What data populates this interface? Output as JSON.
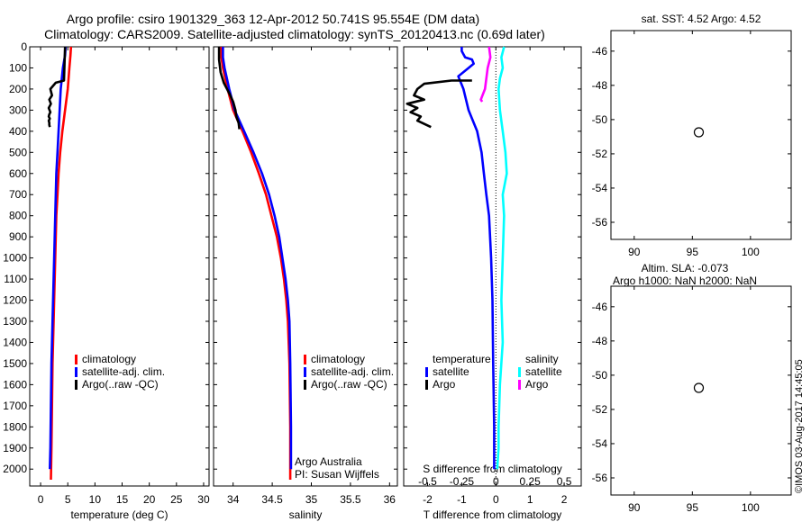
{
  "header": {
    "title_line1": "Argo profile: csiro 1901329_363 12-Apr-2012 50.741S 95.554E (DM data)",
    "title_line2": "Climatology: CARS2009. Satellite-adjusted climatology: synTS_20120413.nc (0.69d later)"
  },
  "colors": {
    "climatology": "#ff0000",
    "satellite": "#0000ff",
    "argo": "#000000",
    "satellite_salinity_diff": "#00ffff",
    "argo_salinity_diff": "#ff00ff"
  },
  "chart_data": [
    {
      "id": "temperature",
      "type": "line",
      "xlabel": "temperature (deg C)",
      "ylabel": "",
      "xlim": [
        -2,
        31
      ],
      "ylim": [
        2080,
        0
      ],
      "xticks": [
        0,
        5,
        10,
        15,
        20,
        25,
        30
      ],
      "yticks": [
        0,
        100,
        200,
        300,
        400,
        500,
        600,
        700,
        800,
        900,
        1000,
        1100,
        1200,
        1300,
        1400,
        1500,
        1600,
        1700,
        1800,
        1900,
        2000
      ],
      "legend": [
        "climatology",
        "satellite-adj. clim.",
        "Argo(..raw -QC)"
      ],
      "legend_position": "lower-center",
      "series": [
        {
          "name": "climatology",
          "color": "#ff0000",
          "x": [
            5.6,
            5.5,
            5.3,
            5.0,
            4.5,
            4.0,
            3.6,
            3.3,
            3.1,
            2.9,
            2.8,
            2.7,
            2.6,
            2.5,
            2.4,
            2.3,
            2.2,
            2.1,
            2.0,
            1.9
          ],
          "y": [
            0,
            40,
            100,
            200,
            300,
            400,
            500,
            600,
            700,
            800,
            900,
            1000,
            1100,
            1200,
            1300,
            1400,
            1500,
            1700,
            1900,
            2050
          ]
        },
        {
          "name": "satellite-adj. clim.",
          "color": "#0000ff",
          "x": [
            4.6,
            4.5,
            4.1,
            3.7,
            3.5,
            3.3,
            3.1,
            2.9,
            2.8,
            2.7,
            2.6,
            2.5,
            2.4,
            2.3,
            2.2,
            2.1,
            2.0,
            1.9,
            1.8,
            1.7
          ],
          "y": [
            0,
            40,
            100,
            200,
            300,
            400,
            500,
            600,
            700,
            800,
            900,
            1000,
            1100,
            1200,
            1300,
            1400,
            1500,
            1700,
            1900,
            2000
          ]
        },
        {
          "name": "Argo(..raw -QC)",
          "color": "#000000",
          "x": [
            4.5,
            4.4,
            4.3,
            2.8,
            1.8,
            2.1,
            1.6,
            1.9,
            1.5,
            1.8,
            1.6,
            1.5,
            1.7,
            1.5,
            1.6,
            1.6,
            1.7
          ],
          "y": [
            0,
            80,
            160,
            170,
            200,
            230,
            250,
            270,
            290,
            310,
            320,
            330,
            340,
            350,
            360,
            370,
            380
          ]
        }
      ]
    },
    {
      "id": "salinity",
      "type": "line",
      "xlabel": "salinity",
      "ylabel": "",
      "xlim": [
        33.75,
        36.1
      ],
      "ylim": [
        2080,
        0
      ],
      "xticks": [
        34,
        34.5,
        35,
        35.5,
        36
      ],
      "xticklabels": [
        "34",
        "34.5",
        "35",
        "35.5",
        "36"
      ],
      "legend": [
        "climatology",
        "satellite-adj. clim.",
        "Argo(..raw -QC)"
      ],
      "legend_position": "lower-right",
      "annotation": [
        "Argo Australia",
        "PI: Susan Wijffels"
      ],
      "series": [
        {
          "name": "climatology",
          "color": "#ff0000",
          "x": [
            33.85,
            33.85,
            33.87,
            33.93,
            34.0,
            34.12,
            34.23,
            34.33,
            34.42,
            34.49,
            34.56,
            34.61,
            34.65,
            34.68,
            34.7,
            34.72,
            34.73,
            34.73
          ],
          "y": [
            0,
            50,
            100,
            200,
            300,
            400,
            500,
            600,
            700,
            800,
            900,
            1000,
            1100,
            1200,
            1300,
            1500,
            1800,
            2050
          ]
        },
        {
          "name": "satellite-adj. clim.",
          "color": "#0000ff",
          "x": [
            33.87,
            33.87,
            33.89,
            33.95,
            34.02,
            34.14,
            34.26,
            34.37,
            34.46,
            34.53,
            34.59,
            34.63,
            34.67,
            34.7,
            34.72,
            34.73,
            34.74,
            34.74
          ],
          "y": [
            0,
            50,
            100,
            200,
            300,
            400,
            500,
            600,
            700,
            800,
            900,
            1000,
            1100,
            1200,
            1300,
            1500,
            1800,
            2000
          ]
        },
        {
          "name": "Argo(..raw -QC)",
          "color": "#000000",
          "x": [
            33.82,
            33.82,
            33.84,
            33.88,
            33.95,
            34.0,
            34.03,
            34.04,
            34.07,
            34.08
          ],
          "y": [
            0,
            60,
            120,
            170,
            220,
            260,
            300,
            330,
            360,
            390
          ]
        }
      ]
    },
    {
      "id": "differences",
      "type": "line",
      "xlabel": "T difference from climatology",
      "ylabel": "",
      "title": "S difference from climatology",
      "xlim": [
        -2.7,
        2.5
      ],
      "ylim": [
        2080,
        0
      ],
      "xticks_bottom": [
        -2,
        -1,
        0,
        1,
        2
      ],
      "xticks_top": [
        -0.5,
        -0.25,
        0,
        0.25,
        0.5
      ],
      "xticklabels_top": [
        "-0.5",
        "-0.25",
        "0",
        "0.25",
        "0.5"
      ],
      "zero_line": "dotted",
      "legend_groups": [
        {
          "heading": "temperature",
          "items": [
            "satellite",
            "Argo"
          ]
        },
        {
          "heading": "salinity",
          "items": [
            "satellite",
            "Argo"
          ]
        }
      ],
      "series": [
        {
          "name": "satellite",
          "group": "temperature",
          "color": "#0000ff",
          "x": [
            -1.0,
            -1.0,
            -0.9,
            -0.7,
            -0.65,
            -0.8,
            -1.1,
            -0.95,
            -0.8,
            -0.55,
            -0.42,
            -0.35,
            -0.28,
            -0.2,
            -0.14,
            -0.1,
            -0.08,
            -0.05,
            -0.05
          ],
          "y": [
            0,
            20,
            50,
            60,
            80,
            100,
            140,
            200,
            300,
            400,
            500,
            600,
            700,
            800,
            1000,
            1200,
            1500,
            1800,
            2000
          ]
        },
        {
          "name": "Argo",
          "group": "temperature",
          "color": "#000000",
          "x": [
            -0.7,
            -1.3,
            -2.1,
            -2.3,
            -2.4,
            -2.1,
            -2.6,
            -2.3,
            -2.5,
            -2.2,
            -2.3,
            -1.9
          ],
          "y": [
            160,
            160,
            175,
            200,
            230,
            250,
            270,
            290,
            310,
            330,
            350,
            380
          ]
        },
        {
          "name": "satellite",
          "group": "salinity",
          "color": "#00ffff",
          "x": [
            0.06,
            0.04,
            0.05,
            0.03,
            0.02,
            0.03,
            0.05,
            0.07,
            0.08,
            0.05,
            0.06,
            0.05,
            0.04,
            0.05,
            0.03,
            0.02,
            0.02,
            0.01
          ],
          "y": [
            0,
            50,
            100,
            150,
            200,
            300,
            400,
            500,
            600,
            700,
            800,
            1000,
            1200,
            1400,
            1600,
            1800,
            1900,
            2000
          ]
        },
        {
          "name": "Argo",
          "group": "salinity",
          "color": "#ff00ff",
          "x": [
            -0.05,
            -0.04,
            -0.06,
            -0.07,
            -0.08,
            -0.11,
            -0.1
          ],
          "y": [
            0,
            50,
            100,
            150,
            200,
            250,
            260
          ]
        }
      ]
    },
    {
      "id": "sst-map",
      "type": "heatmap",
      "title": "sat. SST: 4.52 Argo: 4.52",
      "xlim": [
        88,
        103.5
      ],
      "ylim": [
        -57,
        -44.8
      ],
      "xticks": [
        90,
        95,
        100
      ],
      "yticks": [
        -46,
        -48,
        -50,
        -52,
        -54,
        -56
      ],
      "marker": {
        "lon": 95.554,
        "lat": -50.741
      }
    },
    {
      "id": "sla-map",
      "type": "heatmap",
      "title_line1": "Altim. SLA: -0.073",
      "title_line2": "Argo h1000: NaN h2000: NaN",
      "xlim": [
        88,
        103.5
      ],
      "ylim": [
        -57,
        -44.8
      ],
      "xticks": [
        90,
        95,
        100
      ],
      "yticks": [
        -46,
        -48,
        -50,
        -52,
        -54,
        -56
      ],
      "marker": {
        "lon": 95.554,
        "lat": -50.741
      }
    }
  ],
  "credit": "©IMOS 03-Aug-2017 14:45:05"
}
